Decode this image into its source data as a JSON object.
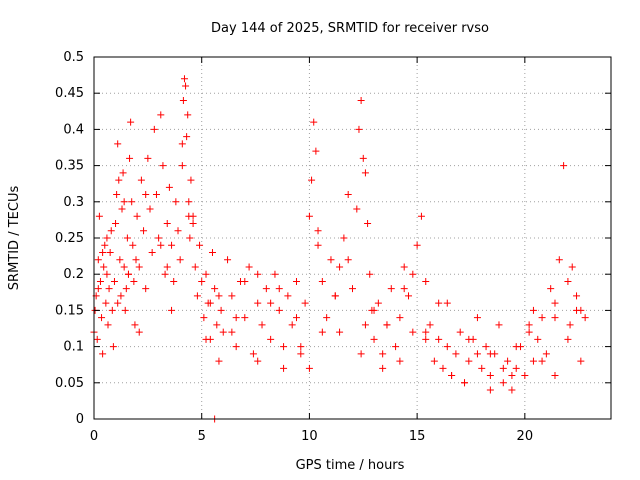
{
  "chart_data": {
    "type": "scatter",
    "title": "Day 144 of 2025, SRMTID for receiver rvso",
    "xlabel": "GPS time / hours",
    "ylabel": "SRMTID / TECUs",
    "xlim": [
      0,
      24
    ],
    "ylim": [
      0,
      0.5
    ],
    "grid": true,
    "marker": "+",
    "series_color": "#ff0000",
    "x_ticks": [
      {
        "value": 0,
        "label": "0"
      },
      {
        "value": 5,
        "label": "5"
      },
      {
        "value": 10,
        "label": "10"
      },
      {
        "value": 15,
        "label": "15"
      },
      {
        "value": 20,
        "label": "20"
      }
    ],
    "y_ticks": [
      {
        "value": 0,
        "label": "0"
      },
      {
        "value": 0.05,
        "label": "0.05"
      },
      {
        "value": 0.1,
        "label": "0.1"
      },
      {
        "value": 0.15,
        "label": "0.15"
      },
      {
        "value": 0.2,
        "label": "0.2"
      },
      {
        "value": 0.25,
        "label": "0.25"
      },
      {
        "value": 0.3,
        "label": "0.3"
      },
      {
        "value": 0.35,
        "label": "0.35"
      },
      {
        "value": 0.4,
        "label": "0.4"
      },
      {
        "value": 0.45,
        "label": "0.45"
      },
      {
        "value": 0.5,
        "label": "0.5"
      }
    ],
    "series": [
      {
        "name": "SRMTID",
        "x": [
          0.0,
          0.05,
          0.1,
          0.15,
          0.2,
          0.25,
          0.3,
          0.35,
          0.4,
          0.45,
          0.5,
          0.55,
          0.6,
          0.65,
          0.7,
          0.75,
          0.8,
          0.85,
          0.9,
          0.95,
          1.0,
          1.05,
          1.1,
          1.15,
          1.2,
          1.25,
          1.3,
          1.35,
          1.4,
          1.45,
          1.5,
          1.55,
          1.6,
          1.65,
          1.7,
          1.75,
          1.8,
          1.85,
          1.9,
          1.95,
          2.0,
          2.1,
          2.2,
          2.3,
          2.4,
          2.5,
          2.6,
          2.7,
          2.8,
          2.9,
          3.0,
          3.1,
          3.2,
          3.3,
          3.4,
          3.5,
          3.6,
          3.7,
          3.8,
          3.9,
          4.0,
          4.1,
          4.15,
          4.2,
          4.25,
          4.3,
          4.35,
          4.4,
          4.45,
          4.5,
          4.6,
          4.7,
          4.8,
          4.9,
          5.0,
          5.1,
          5.2,
          5.3,
          5.4,
          5.5,
          5.6,
          5.7,
          5.8,
          5.9,
          6.0,
          6.2,
          6.4,
          6.6,
          6.8,
          7.0,
          7.2,
          7.4,
          7.6,
          7.8,
          8.0,
          8.2,
          8.4,
          8.6,
          8.8,
          9.0,
          9.2,
          9.4,
          9.6,
          9.8,
          10.0,
          10.1,
          10.2,
          10.3,
          10.4,
          10.6,
          10.8,
          11.0,
          11.2,
          11.4,
          11.6,
          11.8,
          12.0,
          12.2,
          12.3,
          12.4,
          12.5,
          12.6,
          12.7,
          12.8,
          12.9,
          13.0,
          13.2,
          13.4,
          13.6,
          13.8,
          14.0,
          14.2,
          14.4,
          14.6,
          14.8,
          15.0,
          15.2,
          15.4,
          15.6,
          15.8,
          16.0,
          16.2,
          16.4,
          16.6,
          16.8,
          17.0,
          17.2,
          17.4,
          17.6,
          17.8,
          18.0,
          18.2,
          18.4,
          18.6,
          18.8,
          19.0,
          19.2,
          19.4,
          19.6,
          19.8,
          20.0,
          20.2,
          20.4,
          20.6,
          20.8,
          21.0,
          21.2,
          21.4,
          21.6,
          21.8,
          22.0,
          22.1,
          22.2,
          22.4,
          22.6,
          22.8,
          0.2,
          0.6,
          1.1,
          1.6,
          2.1,
          2.6,
          3.1,
          3.6,
          4.1,
          4.6,
          5.2,
          5.8,
          6.4,
          7.0,
          7.6,
          8.2,
          8.8,
          9.4,
          10.0,
          10.6,
          11.2,
          11.8,
          12.4,
          13.0,
          13.6,
          14.2,
          14.8,
          15.4,
          16.0,
          16.6,
          17.2,
          17.8,
          18.4,
          19.0,
          19.6,
          20.2,
          20.8,
          21.4,
          22.0,
          22.6,
          0.4,
          1.4,
          2.4,
          3.4,
          4.4,
          5.4,
          6.6,
          7.6,
          8.6,
          9.6,
          10.4,
          11.4,
          12.6,
          13.4,
          14.4,
          15.4,
          16.4,
          17.4,
          18.4,
          19.4,
          20.4,
          21.4,
          22.4,
          5.6
        ],
        "y": [
          0.12,
          0.15,
          0.17,
          0.11,
          0.22,
          0.28,
          0.19,
          0.14,
          0.09,
          0.21,
          0.24,
          0.16,
          0.2,
          0.13,
          0.18,
          0.23,
          0.26,
          0.15,
          0.1,
          0.19,
          0.27,
          0.31,
          0.38,
          0.33,
          0.22,
          0.17,
          0.29,
          0.34,
          0.21,
          0.15,
          0.18,
          0.25,
          0.2,
          0.36,
          0.41,
          0.3,
          0.24,
          0.19,
          0.13,
          0.22,
          0.28,
          0.21,
          0.33,
          0.26,
          0.18,
          0.36,
          0.29,
          0.23,
          0.4,
          0.31,
          0.25,
          0.42,
          0.35,
          0.2,
          0.27,
          0.32,
          0.24,
          0.19,
          0.3,
          0.26,
          0.22,
          0.35,
          0.44,
          0.47,
          0.46,
          0.39,
          0.42,
          0.3,
          0.25,
          0.33,
          0.28,
          0.21,
          0.17,
          0.24,
          0.19,
          0.14,
          0.2,
          0.16,
          0.11,
          0.23,
          0.18,
          0.13,
          0.08,
          0.15,
          0.12,
          0.22,
          0.17,
          0.1,
          0.19,
          0.14,
          0.21,
          0.09,
          0.16,
          0.13,
          0.18,
          0.11,
          0.2,
          0.15,
          0.07,
          0.17,
          0.13,
          0.19,
          0.1,
          0.16,
          0.28,
          0.33,
          0.41,
          0.37,
          0.26,
          0.19,
          0.14,
          0.22,
          0.17,
          0.12,
          0.25,
          0.31,
          0.18,
          0.29,
          0.4,
          0.44,
          0.36,
          0.34,
          0.27,
          0.2,
          0.15,
          0.11,
          0.16,
          0.09,
          0.13,
          0.18,
          0.1,
          0.14,
          0.21,
          0.17,
          0.12,
          0.24,
          0.28,
          0.19,
          0.13,
          0.08,
          0.11,
          0.07,
          0.1,
          0.06,
          0.09,
          0.12,
          0.05,
          0.08,
          0.11,
          0.14,
          0.07,
          0.1,
          0.06,
          0.09,
          0.13,
          0.05,
          0.08,
          0.04,
          0.07,
          0.1,
          0.06,
          0.12,
          0.15,
          0.11,
          0.14,
          0.09,
          0.18,
          0.16,
          0.22,
          0.35,
          0.19,
          0.13,
          0.21,
          0.15,
          0.08,
          0.14,
          0.18,
          0.25,
          0.16,
          0.2,
          0.12,
          0.29,
          0.24,
          0.15,
          0.38,
          0.27,
          0.11,
          0.17,
          0.12,
          0.19,
          0.08,
          0.16,
          0.1,
          0.14,
          0.07,
          0.12,
          0.17,
          0.22,
          0.09,
          0.15,
          0.13,
          0.08,
          0.2,
          0.11,
          0.16,
          0.06,
          0.05,
          0.09,
          0.04,
          0.07,
          0.1,
          0.13,
          0.08,
          0.06,
          0.11,
          0.15,
          0.23,
          0.3,
          0.31,
          0.21,
          0.28,
          0.16,
          0.14,
          0.2,
          0.18,
          0.09,
          0.24,
          0.21,
          0.13,
          0.07,
          0.18,
          0.12,
          0.16,
          0.11,
          0.09,
          0.06,
          0.08,
          0.14,
          0.17,
          0.0
        ]
      }
    ]
  }
}
